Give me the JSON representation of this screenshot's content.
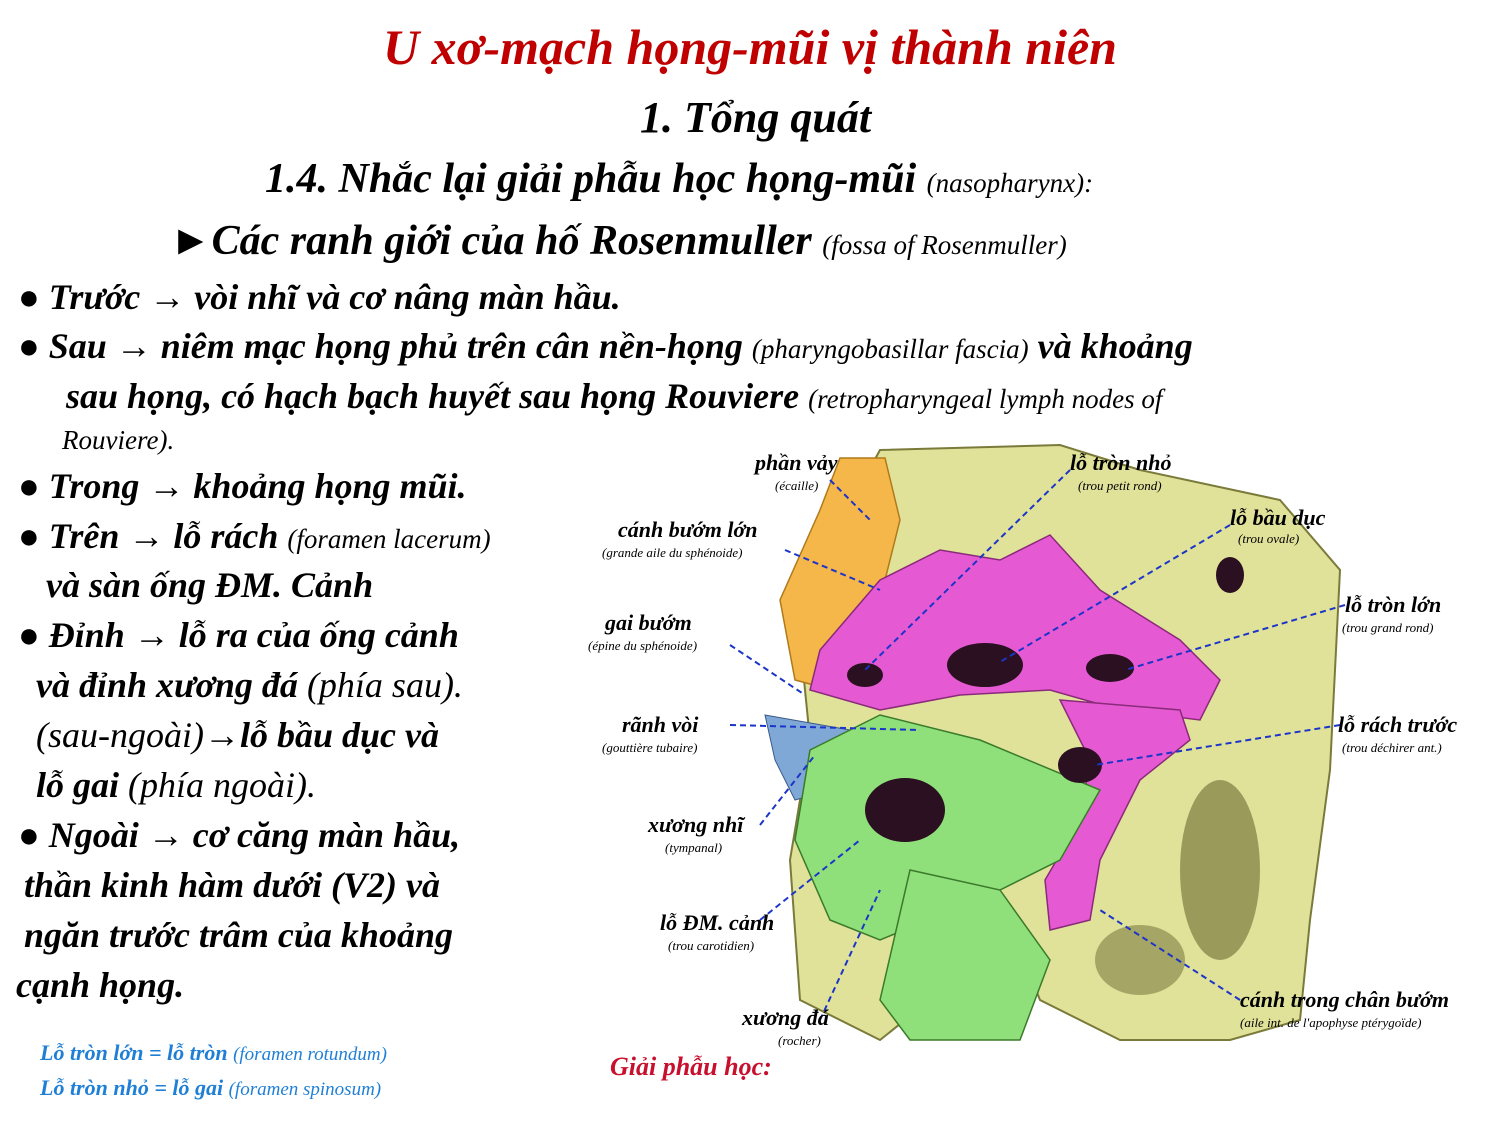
{
  "colors": {
    "title": "#c00000",
    "note": "#1f7fd6",
    "anatomy_label": "#c8102e",
    "leader": "#1c35c8"
  },
  "title": "U xơ-mạch họng-mũi vị thành niên",
  "section": "1. Tổng quát",
  "subsection": {
    "main": "1.4. Nhắc lại giải phẫu học họng-mũi",
    "latin": "(nasopharynx):"
  },
  "heading": {
    "marker": "►",
    "main": "Các ranh giới của hố Rosenmuller",
    "latin": "(fossa of Rosenmuller)"
  },
  "bullets": {
    "b1": "● Trước → vòi nhĩ và cơ nâng màn hầu.",
    "b2_main": "● Sau → niêm mạc họng phủ trên cân nền-họng",
    "b2_latin": "(pharyngobasillar fascia)",
    "b2_tail": "và khoảng",
    "b2_l2_main": "sau họng, có hạch bạch huyết sau họng Rouviere",
    "b2_l2_latin": "(retropharyngeal lymph nodes of",
    "b2_l3": "Rouviere).",
    "b3": "● Trong → khoảng họng mũi.",
    "b4_main": "● Trên → lỗ rách",
    "b4_latin": "(foramen lacerum)",
    "b4_l2": "và sàn ống ĐM. Cảnh",
    "b5_l1": "● Đỉnh → lỗ ra của ống cảnh",
    "b5_l2_main": "và đỉnh xương đá",
    "b5_l2_plain": "(phía sau).",
    "b5_l3_plain": "(sau-ngoài)→",
    "b5_l3_main": "lỗ bầu dục và",
    "b5_l4_main": "lỗ gai",
    "b5_l4_plain": "(phía ngoài).",
    "b6_l1": "● Ngoài → cơ căng màn hầu,",
    "b6_l2": "thần kinh hàm dưới (V2) và",
    "b6_l3": "ngăn trước trâm của khoảng",
    "b6_l4": "cạnh họng."
  },
  "notes": [
    {
      "main": "Lỗ tròn lớn = lỗ tròn",
      "latin": "(foramen rotundum)"
    },
    {
      "main": "Lỗ tròn nhỏ = lỗ gai",
      "latin": "(foramen spinosum)"
    }
  ],
  "figure": {
    "caption": "Giải phẫu học:",
    "labels": {
      "phan_vay": {
        "vi": "phần vảy",
        "fr": "(écaille)"
      },
      "canh_buom_lon": {
        "vi": "cánh bướm lớn",
        "fr": "(grande aile du sphénoide)"
      },
      "gai_buom": {
        "vi": "gai bướm",
        "fr": "(épine du sphénoide)"
      },
      "ranh_voi": {
        "vi": "rãnh vòi",
        "fr": "(gouttière tubaire)"
      },
      "xuong_nhi": {
        "vi": "xương nhĩ",
        "fr": "(tympanal)"
      },
      "lo_dm_canh": {
        "vi": "lỗ ĐM. cảnh",
        "fr": "(trou carotidien)"
      },
      "xuong_da": {
        "vi": "xương đá",
        "fr": "(rocher)"
      },
      "lo_tron_nho": {
        "vi": "lỗ tròn nhỏ",
        "fr": "(trou petit rond)"
      },
      "lo_bau_duc": {
        "vi": "lỗ bầu dục",
        "fr": "(trou ovale)"
      },
      "lo_tron_lon": {
        "vi": "lỗ tròn lớn",
        "fr": "(trou grand rond)"
      },
      "lo_rach_truoc": {
        "vi": "lỗ rách trước",
        "fr": "(trou déchirer ant.)"
      },
      "canh_trong": {
        "vi": "cánh trong chân bướm",
        "fr": "(aile int. de l'apophyse ptérygoïde)"
      }
    }
  }
}
